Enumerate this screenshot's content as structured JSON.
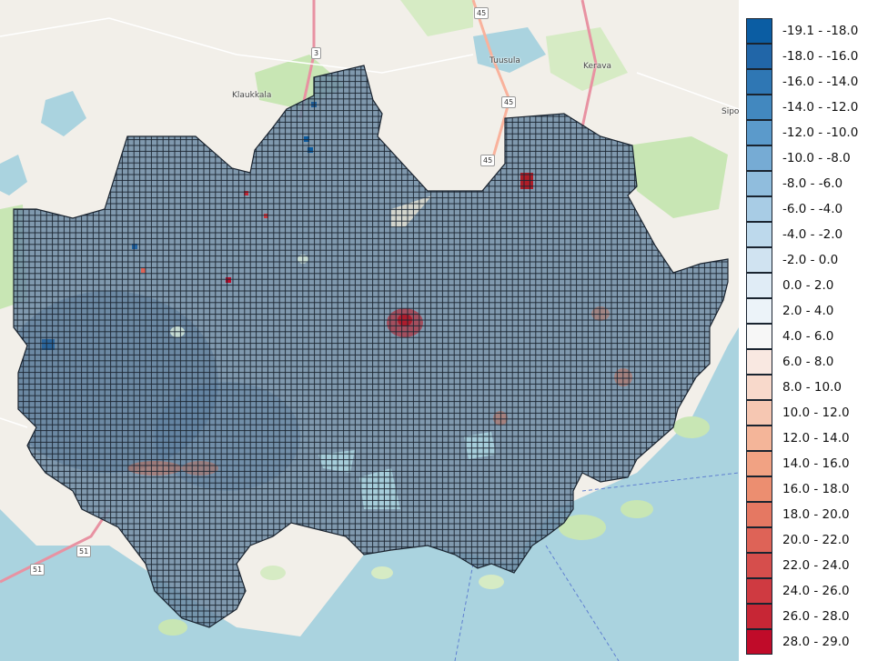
{
  "map": {
    "places": [
      {
        "name": "Tuusula"
      },
      {
        "name": "Kerava"
      },
      {
        "name": "Klaukkala"
      },
      {
        "name": "Sipo"
      }
    ],
    "road_shields": [
      "45",
      "3",
      "45",
      "45",
      "51",
      "51"
    ],
    "colors": {
      "land": "#f2efe9",
      "sea": "#aad3df",
      "forest": "#c8e6b4",
      "grid_fill": "#6c8aa3",
      "grid_line": "#1a2430",
      "hot": "#c1121f",
      "cold": "#1f5f9b"
    }
  },
  "legend": {
    "items": [
      {
        "label": "-19.1 - -18.0",
        "color": "#0b5da3"
      },
      {
        "label": "-18.0 - -16.0",
        "color": "#2166a8"
      },
      {
        "label": "-16.0 - -14.0",
        "color": "#2f77b4"
      },
      {
        "label": "-14.0 - -12.0",
        "color": "#4288bf"
      },
      {
        "label": "-12.0 - -10.0",
        "color": "#5b9acb"
      },
      {
        "label": "-10.0 - -8.0",
        "color": "#76abd4"
      },
      {
        "label": "-8.0 - -6.0",
        "color": "#90bddd"
      },
      {
        "label": "-6.0 - -4.0",
        "color": "#a8cce5"
      },
      {
        "label": "-4.0 - -2.0",
        "color": "#bdd9ec"
      },
      {
        "label": "-2.0 - 0.0",
        "color": "#d0e3f1"
      },
      {
        "label": "0.0 - 2.0",
        "color": "#e0ecf6"
      },
      {
        "label": "2.0 - 4.0",
        "color": "#ecf3f9"
      },
      {
        "label": "4.0 - 6.0",
        "color": "#f7f7f7"
      },
      {
        "label": "6.0 - 8.0",
        "color": "#f9e8e1"
      },
      {
        "label": "8.0 - 10.0",
        "color": "#f8d9cb"
      },
      {
        "label": "10.0 - 12.0",
        "color": "#f6c7b2"
      },
      {
        "label": "12.0 - 14.0",
        "color": "#f4b599"
      },
      {
        "label": "14.0 - 16.0",
        "color": "#f1a283"
      },
      {
        "label": "16.0 - 18.0",
        "color": "#ec8e70"
      },
      {
        "label": "18.0 - 20.0",
        "color": "#e57862"
      },
      {
        "label": "20.0 - 22.0",
        "color": "#de6357"
      },
      {
        "label": "22.0 - 24.0",
        "color": "#d64e4c"
      },
      {
        "label": "24.0 - 26.0",
        "color": "#cf3a41"
      },
      {
        "label": "26.0 - 28.0",
        "color": "#c72635"
      },
      {
        "label": "28.0 - 29.0",
        "color": "#c00b29"
      }
    ]
  }
}
